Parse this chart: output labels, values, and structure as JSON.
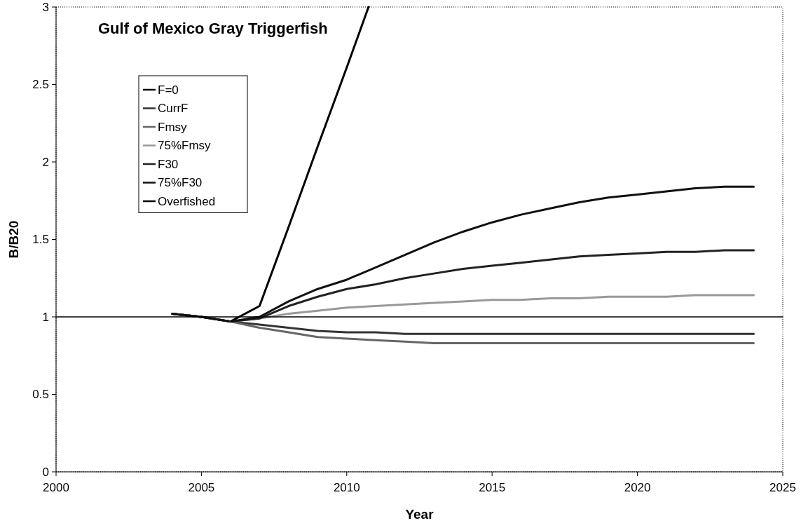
{
  "chart_data": {
    "type": "line",
    "title": "Gulf of Mexico Gray Triggerfish",
    "xlabel": "Year",
    "ylabel": "B/B20",
    "xlim": [
      2000,
      2025
    ],
    "xticks": [
      2000,
      2005,
      2010,
      2015,
      2020,
      2025
    ],
    "ylim": [
      0,
      3
    ],
    "yticks": [
      0,
      0.5,
      1,
      1.5,
      2,
      2.5,
      3
    ],
    "legend": "top left",
    "grid": false,
    "series": [
      {
        "name": "F=0",
        "color": "#000000",
        "x": [
          2004,
          2005,
          2006,
          2007,
          2008,
          2009,
          2010,
          2010.75
        ],
        "values": [
          1.02,
          1.0,
          0.97,
          1.07,
          1.58,
          2.1,
          2.61,
          3.0
        ]
      },
      {
        "name": "CurrF",
        "color": "#333333",
        "x": [
          2004,
          2005,
          2006,
          2007,
          2008,
          2009,
          2010,
          2011,
          2012,
          2013,
          2014,
          2015,
          2016,
          2017,
          2018,
          2019,
          2020,
          2021,
          2022,
          2023,
          2024
        ],
        "values": [
          1.02,
          1.0,
          0.97,
          0.95,
          0.93,
          0.91,
          0.9,
          0.9,
          0.89,
          0.89,
          0.89,
          0.89,
          0.89,
          0.89,
          0.89,
          0.89,
          0.89,
          0.89,
          0.89,
          0.89,
          0.89
        ]
      },
      {
        "name": "Fmsy",
        "color": "#666666",
        "x": [
          2004,
          2005,
          2006,
          2007,
          2008,
          2009,
          2010,
          2011,
          2012,
          2013,
          2014,
          2015,
          2016,
          2017,
          2018,
          2019,
          2020,
          2021,
          2022,
          2023,
          2024
        ],
        "values": [
          1.02,
          1.0,
          0.97,
          0.93,
          0.9,
          0.87,
          0.86,
          0.85,
          0.84,
          0.83,
          0.83,
          0.83,
          0.83,
          0.83,
          0.83,
          0.83,
          0.83,
          0.83,
          0.83,
          0.83,
          0.83
        ]
      },
      {
        "name": "75%Fmsy",
        "color": "#999999",
        "x": [
          2004,
          2005,
          2006,
          2007,
          2008,
          2009,
          2010,
          2011,
          2012,
          2013,
          2014,
          2015,
          2016,
          2017,
          2018,
          2019,
          2020,
          2021,
          2022,
          2023,
          2024
        ],
        "values": [
          1.02,
          1.0,
          0.97,
          0.99,
          1.02,
          1.04,
          1.06,
          1.07,
          1.08,
          1.09,
          1.1,
          1.11,
          1.11,
          1.12,
          1.12,
          1.13,
          1.13,
          1.13,
          1.14,
          1.14,
          1.14
        ]
      },
      {
        "name": "F30",
        "color": "#222222",
        "x": [
          2004,
          2005,
          2006,
          2007,
          2008,
          2009,
          2010,
          2011,
          2012,
          2013,
          2014,
          2015,
          2016,
          2017,
          2018,
          2019,
          2020,
          2021,
          2022,
          2023,
          2024
        ],
        "values": [
          1.02,
          1.0,
          0.97,
          0.99,
          1.07,
          1.13,
          1.18,
          1.21,
          1.25,
          1.28,
          1.31,
          1.33,
          1.35,
          1.37,
          1.39,
          1.4,
          1.41,
          1.42,
          1.42,
          1.43,
          1.43
        ]
      },
      {
        "name": "75%F30",
        "color": "#111111",
        "x": [
          2004,
          2005,
          2006,
          2007,
          2008,
          2009,
          2010,
          2011,
          2012,
          2013,
          2014,
          2015,
          2016,
          2017,
          2018,
          2019,
          2020,
          2021,
          2022,
          2023,
          2024
        ],
        "values": [
          1.02,
          1.0,
          0.97,
          1.0,
          1.1,
          1.18,
          1.24,
          1.32,
          1.4,
          1.48,
          1.55,
          1.61,
          1.66,
          1.7,
          1.74,
          1.77,
          1.79,
          1.81,
          1.83,
          1.84,
          1.84
        ]
      },
      {
        "name": "Overfished",
        "color": "#000000",
        "x": [
          2000,
          2025
        ],
        "values": [
          1,
          1
        ]
      }
    ]
  }
}
